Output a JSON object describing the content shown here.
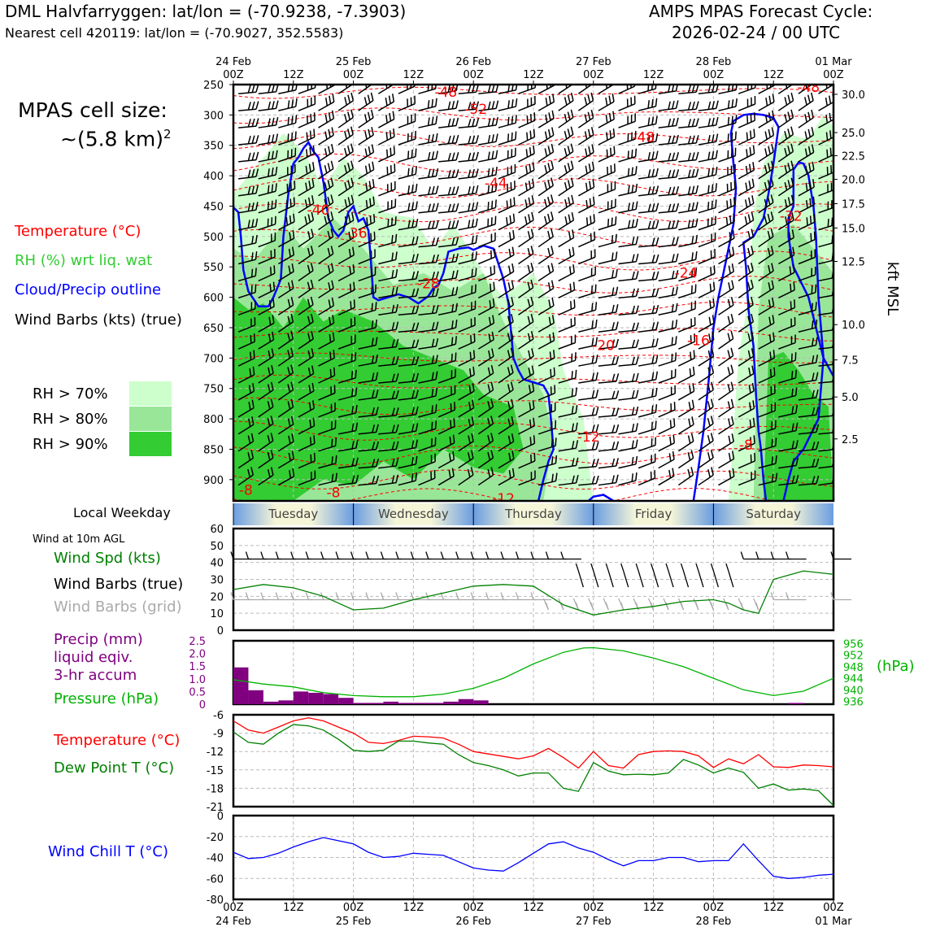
{
  "header": {
    "title_line1": "DML Halvfarryggen: lat/lon = (-70.9238, -7.3903)",
    "title_line2": "Nearest cell 420119: lat/lon = (-70.9027, 352.5583)",
    "cycle_line1": "AMPS MPAS Forecast Cycle:",
    "cycle_line2": "2026-02-24 / 00 UTC"
  },
  "cell_size": {
    "line1": "MPAS cell size:",
    "line2": "~(5.8 km)",
    "sup": "2"
  },
  "colors": {
    "temperature": "#ff0000",
    "rh_label": "#33cc33",
    "cloud": "#0000ff",
    "rh70": "#ccffcc",
    "rh80": "#99e699",
    "rh90": "#33cc33",
    "wind_speed": "#008000",
    "precip": "#800080",
    "pressure": "#00b300",
    "dew_point": "#008000",
    "wind_chill": "#0000ff",
    "barb_grid": "#aaaaaa"
  },
  "legend_upper": {
    "temperature": "Temperature (°C)",
    "rh": "RH (%) wrt liq. wat",
    "cloud": "Cloud/Precip outline",
    "wind": "Wind Barbs (kts) (true)",
    "rh70": "RH > 70%",
    "rh80": "RH > 80%",
    "rh90": "RH > 90%"
  },
  "top_time_axis": {
    "ticks": [
      {
        "l1": "24 Feb",
        "l2": "00Z"
      },
      {
        "l1": "",
        "l2": "12Z"
      },
      {
        "l1": "25 Feb",
        "l2": "00Z"
      },
      {
        "l1": "",
        "l2": "12Z"
      },
      {
        "l1": "26 Feb",
        "l2": "00Z"
      },
      {
        "l1": "",
        "l2": "12Z"
      },
      {
        "l1": "27 Feb",
        "l2": "00Z"
      },
      {
        "l1": "",
        "l2": "12Z"
      },
      {
        "l1": "28 Feb",
        "l2": "00Z"
      },
      {
        "l1": "",
        "l2": "12Z"
      },
      {
        "l1": "01 Mar",
        "l2": "00Z"
      }
    ]
  },
  "bottom_time_axis": {
    "ticks": [
      {
        "l1": "00Z",
        "l2": "24 Feb"
      },
      {
        "l1": "12Z",
        "l2": ""
      },
      {
        "l1": "00Z",
        "l2": "25 Feb"
      },
      {
        "l1": "12Z",
        "l2": ""
      },
      {
        "l1": "00Z",
        "l2": "26 Feb"
      },
      {
        "l1": "12Z",
        "l2": ""
      },
      {
        "l1": "00Z",
        "l2": "27 Feb"
      },
      {
        "l1": "12Z",
        "l2": ""
      },
      {
        "l1": "00Z",
        "l2": "28 Feb"
      },
      {
        "l1": "12Z",
        "l2": ""
      },
      {
        "l1": "00Z",
        "l2": "01 Mar"
      }
    ]
  },
  "weekday_bar": {
    "label": "Local Weekday",
    "days": [
      "Tuesday",
      "Wednesday",
      "Thursday",
      "Friday",
      "Saturday"
    ]
  },
  "panel_labels": {
    "wind_at": "Wind at 10m AGL",
    "wind_spd": "Wind Spd (kts)",
    "wind_barbs_true": "Wind Barbs (true)",
    "wind_barbs_grid": "Wind Barbs (grid)",
    "precip1": "Precip (mm)",
    "precip2": "liquid eqiv.",
    "precip3": "3-hr accum",
    "pressure": "Pressure (hPa)",
    "pressure_unit": "(hPa)",
    "temperature": "Temperature (°C)",
    "dew_point": "Dew Point T (°C)",
    "wind_chill": "Wind Chill T (°C)"
  },
  "chart_data": [
    {
      "type": "heatmap",
      "name_note": "Time-height cross section",
      "x_hours": [
        0,
        120
      ],
      "y_pressure_hpa": [
        935,
        250
      ],
      "y_tick_labels": [
        "250",
        "300",
        "350",
        "400",
        "450",
        "500",
        "550",
        "600",
        "650",
        "700",
        "750",
        "800",
        "850",
        "900"
      ],
      "right_axis_label": "kft MSL",
      "right_tick_labels": [
        "30.0",
        "25.0",
        "22.5",
        "20.0",
        "17.5",
        "15.0",
        "12.5",
        "10.0",
        "7.5",
        "5.0",
        "2.5"
      ],
      "right_tick_pressures": [
        266,
        329,
        367,
        406,
        446,
        486,
        541,
        645,
        703,
        764,
        833
      ],
      "temperature_contour_labels": [
        {
          "text": "-48",
          "h": 42.5,
          "p": 262
        },
        {
          "text": "-52",
          "h": 48.5,
          "p": 290
        },
        {
          "text": "-48",
          "h": 82,
          "p": 336
        },
        {
          "text": "-48",
          "h": 115,
          "p": 254
        },
        {
          "text": "-44",
          "h": 52.5,
          "p": 412
        },
        {
          "text": "-40",
          "h": 17,
          "p": 456
        },
        {
          "text": "-36",
          "h": 24.5,
          "p": 494
        },
        {
          "text": "-32",
          "h": 111.5,
          "p": 466
        },
        {
          "text": "-28",
          "h": 39,
          "p": 577
        },
        {
          "text": "-24",
          "h": 90.5,
          "p": 560
        },
        {
          "text": "-20",
          "h": 74,
          "p": 679
        },
        {
          "text": "-16",
          "h": 93,
          "p": 671
        },
        {
          "text": "-12",
          "h": 71,
          "p": 829
        },
        {
          "text": "-8",
          "h": 102.5,
          "p": 843
        },
        {
          "text": "-8",
          "h": 2.5,
          "p": 917
        },
        {
          "text": "-8",
          "h": 20,
          "p": 921
        },
        {
          "text": "-12",
          "h": 54,
          "p": 931
        }
      ]
    },
    {
      "type": "line",
      "name_note": "Wind speed at 10m",
      "ylim": [
        0,
        60
      ],
      "y_ticks": [
        0,
        10,
        20,
        30,
        40,
        50,
        60
      ],
      "x": [
        0,
        6,
        12,
        18,
        24,
        30,
        36,
        42,
        48,
        54,
        60,
        66,
        72,
        78,
        84,
        90,
        96,
        99,
        102,
        105,
        108,
        114,
        120
      ],
      "series": [
        {
          "name": "Wind Spd (kts)",
          "values": [
            24,
            27,
            25,
            20,
            12,
            13,
            18,
            22,
            26,
            27,
            26,
            15,
            9,
            12,
            14,
            17,
            18,
            16,
            12,
            10,
            30,
            35,
            33
          ]
        }
      ]
    },
    {
      "type": "bar",
      "name_note": "3-hr precip",
      "ylim": [
        0,
        2.5
      ],
      "y_ticks": [
        "0",
        "0.5",
        "1.0",
        "1.5",
        "2.0",
        "2.5"
      ],
      "bars_hours": [
        1.5,
        4.5,
        7.5,
        10.5,
        13.5,
        16.5,
        19.5,
        22.5,
        25.5,
        28.5,
        31.5,
        34.5,
        37.5,
        40.5,
        43.5,
        46.5,
        49.5,
        112.5
      ],
      "values": [
        1.45,
        0.55,
        0.1,
        0.15,
        0.5,
        0.45,
        0.4,
        0.25,
        0.05,
        0.05,
        0.1,
        0.05,
        0.05,
        0.05,
        0.1,
        0.2,
        0.15,
        0.05
      ],
      "pressure_ylim": [
        935,
        957
      ],
      "pressure_ticks": [
        "956",
        "952",
        "948",
        "944",
        "940",
        "936"
      ],
      "pressure_x": [
        0,
        6,
        12,
        18,
        24,
        30,
        36,
        42,
        48,
        54,
        60,
        66,
        70,
        72,
        78,
        84,
        90,
        96,
        102,
        108,
        114,
        120
      ],
      "pressure_values": [
        943.5,
        942,
        941,
        939,
        938,
        937.6,
        937.6,
        938.5,
        940.5,
        944,
        949,
        953,
        954.5,
        954.6,
        953.5,
        951,
        948,
        944,
        940,
        938,
        939.5,
        944
      ]
    },
    {
      "type": "line",
      "name_note": "Temperature and dew point",
      "ylim": [
        -21,
        -6
      ],
      "y_ticks": [
        "-6",
        "-9",
        "-12",
        "-15",
        "-18",
        "-21"
      ],
      "x": [
        0,
        3,
        6,
        9,
        12,
        15,
        18,
        21,
        24,
        27,
        30,
        33,
        36,
        39,
        42,
        45,
        48,
        51,
        54,
        57,
        60,
        63,
        66,
        69,
        72,
        75,
        78,
        81,
        84,
        87,
        90,
        93,
        96,
        99,
        102,
        105,
        108,
        111,
        114,
        117,
        120
      ],
      "series": [
        {
          "name": "Temperature (°C)",
          "values": [
            -7,
            -8.5,
            -9,
            -8,
            -7,
            -6.5,
            -7,
            -8,
            -9,
            -10.5,
            -10.7,
            -10.2,
            -9.5,
            -9.6,
            -9.8,
            -10.8,
            -12,
            -12.4,
            -12.8,
            -13.2,
            -12.7,
            -11.5,
            -13,
            -14.7,
            -12,
            -14.3,
            -14.7,
            -12.5,
            -12,
            -11.9,
            -12,
            -12.7,
            -14.6,
            -13.2,
            -14,
            -12.5,
            -14.5,
            -14.6,
            -14.2,
            -14.3,
            -14.5
          ]
        },
        {
          "name": "Dew Point T (°C)",
          "values": [
            -8.8,
            -10.5,
            -10.8,
            -9,
            -7.6,
            -7.8,
            -8.5,
            -10,
            -11.8,
            -12,
            -11.8,
            -10.3,
            -10.3,
            -10.6,
            -10.8,
            -12.5,
            -13.8,
            -14.3,
            -15,
            -16,
            -15.5,
            -15.5,
            -18,
            -18.5,
            -13.8,
            -15.2,
            -15.8,
            -15.7,
            -15.8,
            -15.5,
            -13.3,
            -14.2,
            -15.5,
            -14.7,
            -15.4,
            -18,
            -17.3,
            -18.3,
            -18.1,
            -18.4,
            -20.8
          ]
        }
      ]
    },
    {
      "type": "line",
      "name_note": "Wind chill",
      "ylim": [
        -80,
        0
      ],
      "y_ticks": [
        "0",
        "-20",
        "-40",
        "-60",
        "-80"
      ],
      "x": [
        0,
        3,
        6,
        9,
        12,
        15,
        18,
        21,
        24,
        27,
        30,
        33,
        36,
        39,
        42,
        45,
        48,
        51,
        54,
        57,
        60,
        63,
        66,
        69,
        72,
        75,
        78,
        81,
        84,
        87,
        90,
        93,
        96,
        99,
        102,
        105,
        108,
        111,
        114,
        117,
        120
      ],
      "series": [
        {
          "name": "Wind Chill T (°C)",
          "values": [
            -35,
            -41,
            -40,
            -36,
            -30,
            -25,
            -21,
            -24,
            -27,
            -35,
            -40,
            -39,
            -36,
            -37,
            -38,
            -44,
            -50,
            -52,
            -53,
            -45,
            -36,
            -27,
            -25,
            -31,
            -35,
            -42,
            -48,
            -43,
            -43,
            -40,
            -40,
            -44,
            -43,
            -43,
            -27,
            -43,
            -58,
            -60,
            -59,
            -57,
            -56
          ]
        }
      ]
    }
  ]
}
